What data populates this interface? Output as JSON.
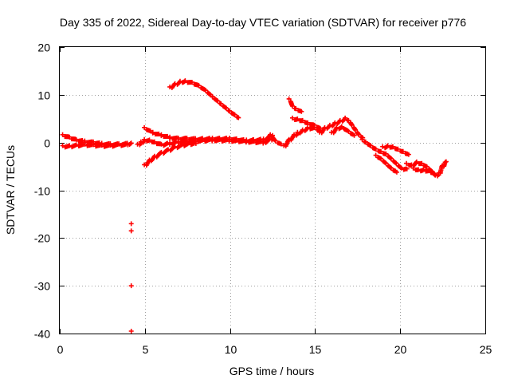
{
  "chart_data": {
    "type": "scatter",
    "title": "Day 335 of 2022, Sidereal Day-to-day VTEC variation (SDTVAR) for receiver p776",
    "xlabel": "GPS time / hours",
    "ylabel": "SDTVAR / TECUs",
    "xlim": [
      0,
      25
    ],
    "ylim": [
      -40,
      20
    ],
    "xticks": [
      0,
      5,
      10,
      15,
      20,
      25
    ],
    "yticks": [
      -40,
      -30,
      -20,
      -10,
      0,
      10,
      20
    ],
    "grid": true,
    "marker": "+",
    "color": "#ff0000",
    "series": [
      {
        "name": "SDTVAR",
        "segments": [
          [
            [
              0.2,
              1.5
            ],
            [
              0.6,
              1.0
            ],
            [
              1.0,
              0.5
            ],
            [
              1.5,
              0.2
            ],
            [
              2.0,
              0.0
            ],
            [
              2.5,
              -0.3
            ],
            [
              3.0,
              -0.4
            ],
            [
              3.5,
              -0.4
            ],
            [
              4.0,
              -0.3
            ],
            [
              4.2,
              -0.1
            ]
          ],
          [
            [
              0.2,
              -0.8
            ],
            [
              0.6,
              -0.8
            ],
            [
              1.0,
              -0.6
            ],
            [
              1.5,
              -0.5
            ],
            [
              2.0,
              -0.6
            ],
            [
              2.5,
              -0.7
            ],
            [
              3.0,
              -0.7
            ],
            [
              3.5,
              -0.5
            ],
            [
              4.0,
              -0.5
            ]
          ],
          [
            [
              4.6,
              -0.5
            ],
            [
              4.8,
              0.0
            ],
            [
              5.0,
              0.5
            ],
            [
              5.3,
              0.4
            ],
            [
              5.6,
              0.0
            ],
            [
              6.0,
              -0.5
            ],
            [
              6.5,
              -0.2
            ],
            [
              7.0,
              0.1
            ],
            [
              7.5,
              0.2
            ],
            [
              8.0,
              0.3
            ],
            [
              9.0,
              0.5
            ],
            [
              10.0,
              0.4
            ],
            [
              11.0,
              0.2
            ],
            [
              12.0,
              0.0
            ],
            [
              12.5,
              0.8
            ]
          ],
          [
            [
              5.0,
              3.0
            ],
            [
              5.5,
              2.0
            ],
            [
              6.0,
              1.5
            ],
            [
              6.5,
              1.0
            ],
            [
              7.0,
              0.8
            ],
            [
              7.5,
              0.8
            ],
            [
              8.0,
              0.7
            ],
            [
              9.0,
              0.8
            ],
            [
              10.0,
              0.8
            ],
            [
              11.0,
              0.4
            ],
            [
              12.0,
              0.6
            ],
            [
              12.5,
              1.5
            ]
          ],
          [
            [
              5.0,
              -4.8
            ],
            [
              5.3,
              -3.8
            ],
            [
              5.6,
              -3.0
            ],
            [
              6.0,
              -2.2
            ],
            [
              6.4,
              -1.6
            ],
            [
              6.8,
              -1.0
            ],
            [
              7.2,
              -0.6
            ],
            [
              7.6,
              -0.3
            ],
            [
              8.0,
              -0.2
            ]
          ],
          [
            [
              6.5,
              11.5
            ],
            [
              6.8,
              12.2
            ],
            [
              7.1,
              12.7
            ],
            [
              7.4,
              12.8
            ],
            [
              7.8,
              12.5
            ],
            [
              8.2,
              11.8
            ],
            [
              8.6,
              10.8
            ],
            [
              9.0,
              9.5
            ],
            [
              9.5,
              8.0
            ],
            [
              10.0,
              6.5
            ],
            [
              10.5,
              5.2
            ]
          ],
          [
            [
              12.4,
              1.5
            ],
            [
              12.7,
              0.2
            ],
            [
              13.0,
              -0.3
            ]
          ],
          [
            [
              13.2,
              -0.8
            ],
            [
              13.5,
              0.5
            ],
            [
              13.8,
              1.5
            ],
            [
              14.0,
              2.0
            ],
            [
              14.3,
              2.5
            ],
            [
              14.6,
              3.0
            ],
            [
              15.0,
              3.0
            ],
            [
              15.3,
              2.5
            ]
          ],
          [
            [
              13.5,
              9.0
            ],
            [
              13.7,
              7.5
            ],
            [
              13.9,
              7.0
            ],
            [
              14.2,
              6.5
            ]
          ],
          [
            [
              13.7,
              5.0
            ],
            [
              14.0,
              4.8
            ],
            [
              14.3,
              4.5
            ],
            [
              14.6,
              4.0
            ],
            [
              15.0,
              3.5
            ],
            [
              15.3,
              3.0
            ]
          ],
          [
            [
              15.3,
              2.0
            ],
            [
              15.6,
              3.0
            ],
            [
              15.9,
              3.5
            ],
            [
              16.2,
              4.0
            ],
            [
              16.5,
              4.5
            ],
            [
              16.8,
              5.0
            ],
            [
              17.0,
              4.5
            ],
            [
              17.2,
              3.5
            ],
            [
              17.4,
              2.5
            ],
            [
              17.6,
              1.5
            ],
            [
              17.8,
              1.0
            ]
          ],
          [
            [
              16.0,
              2.0
            ],
            [
              16.3,
              3.0
            ],
            [
              16.6,
              3.2
            ],
            [
              17.0,
              2.2
            ],
            [
              17.3,
              1.5
            ]
          ],
          [
            [
              17.8,
              0.5
            ],
            [
              18.0,
              0.0
            ],
            [
              18.3,
              -0.8
            ],
            [
              18.6,
              -1.5
            ],
            [
              18.9,
              -2.0
            ],
            [
              19.2,
              -2.5
            ],
            [
              19.5,
              -3.5
            ],
            [
              19.8,
              -4.5
            ],
            [
              20.1,
              -5.5
            ],
            [
              20.4,
              -5.5
            ]
          ],
          [
            [
              19.0,
              -1.0
            ],
            [
              19.3,
              -0.8
            ],
            [
              19.6,
              -1.0
            ],
            [
              19.9,
              -1.5
            ],
            [
              20.2,
              -2.0
            ],
            [
              20.5,
              -2.5
            ]
          ],
          [
            [
              18.6,
              -2.8
            ],
            [
              18.9,
              -3.5
            ],
            [
              19.2,
              -4.5
            ],
            [
              19.5,
              -5.5
            ],
            [
              19.8,
              -6.2
            ]
          ],
          [
            [
              20.4,
              -4.5
            ],
            [
              20.7,
              -4.8
            ],
            [
              21.0,
              -4.2
            ],
            [
              21.3,
              -4.5
            ],
            [
              21.6,
              -5.2
            ],
            [
              21.9,
              -6.2
            ],
            [
              22.1,
              -7.0
            ],
            [
              22.3,
              -6.5
            ],
            [
              22.5,
              -5.0
            ],
            [
              22.7,
              -4.0
            ]
          ],
          [
            [
              20.8,
              -5.5
            ],
            [
              21.1,
              -5.8
            ],
            [
              21.4,
              -5.8
            ],
            [
              21.7,
              -6.0
            ],
            [
              22.0,
              -6.5
            ]
          ]
        ],
        "points": [
          [
            4.2,
            -17.0
          ],
          [
            4.2,
            -18.5
          ],
          [
            4.2,
            -30.0
          ],
          [
            4.2,
            -39.5
          ]
        ]
      }
    ]
  }
}
